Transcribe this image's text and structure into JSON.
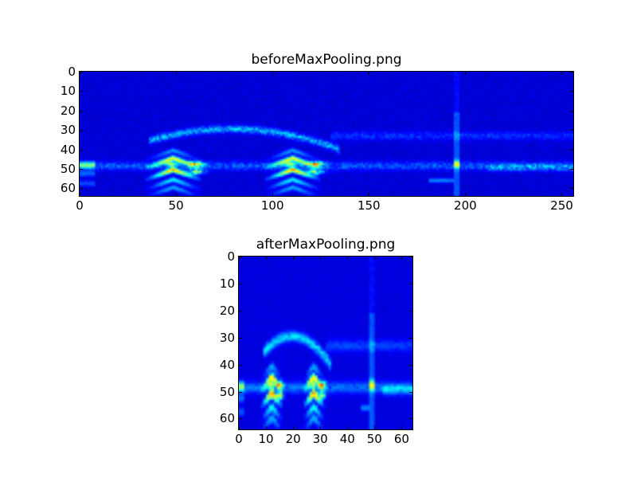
{
  "chart_data": [
    {
      "type": "heatmap",
      "title": "beforeMaxPooling.png",
      "colormap": "jet",
      "xlim": [
        0,
        256
      ],
      "ylim": [
        64,
        0
      ],
      "y_inverted": true,
      "xticks": [
        "0",
        "50",
        "100",
        "150",
        "200",
        "250"
      ],
      "yticks": [
        "0",
        "10",
        "20",
        "30",
        "40",
        "50",
        "60"
      ],
      "grid": false,
      "hotspots": [
        {
          "x": 48,
          "y": 47,
          "intensity": 0.9
        },
        {
          "x": 110,
          "y": 47,
          "intensity": 0.9
        },
        {
          "x": 48,
          "y": 53,
          "intensity": 0.6
        },
        {
          "x": 110,
          "y": 53,
          "intensity": 0.6
        },
        {
          "x": 195,
          "y": 47,
          "intensity": 0.45
        }
      ]
    },
    {
      "type": "heatmap",
      "title": "afterMaxPooling.png",
      "colormap": "jet",
      "xlim": [
        0,
        64
      ],
      "ylim": [
        64,
        0
      ],
      "y_inverted": true,
      "xticks": [
        "0",
        "10",
        "20",
        "30",
        "40",
        "50",
        "60"
      ],
      "yticks": [
        "0",
        "10",
        "20",
        "30",
        "40",
        "50",
        "60"
      ],
      "grid": false,
      "hotspots": [
        {
          "x": 12,
          "y": 47,
          "intensity": 0.9
        },
        {
          "x": 27,
          "y": 47,
          "intensity": 0.9
        },
        {
          "x": 12,
          "y": 54,
          "intensity": 0.6
        },
        {
          "x": 27,
          "y": 54,
          "intensity": 0.6
        },
        {
          "x": 48,
          "y": 47,
          "intensity": 0.45
        }
      ]
    }
  ]
}
